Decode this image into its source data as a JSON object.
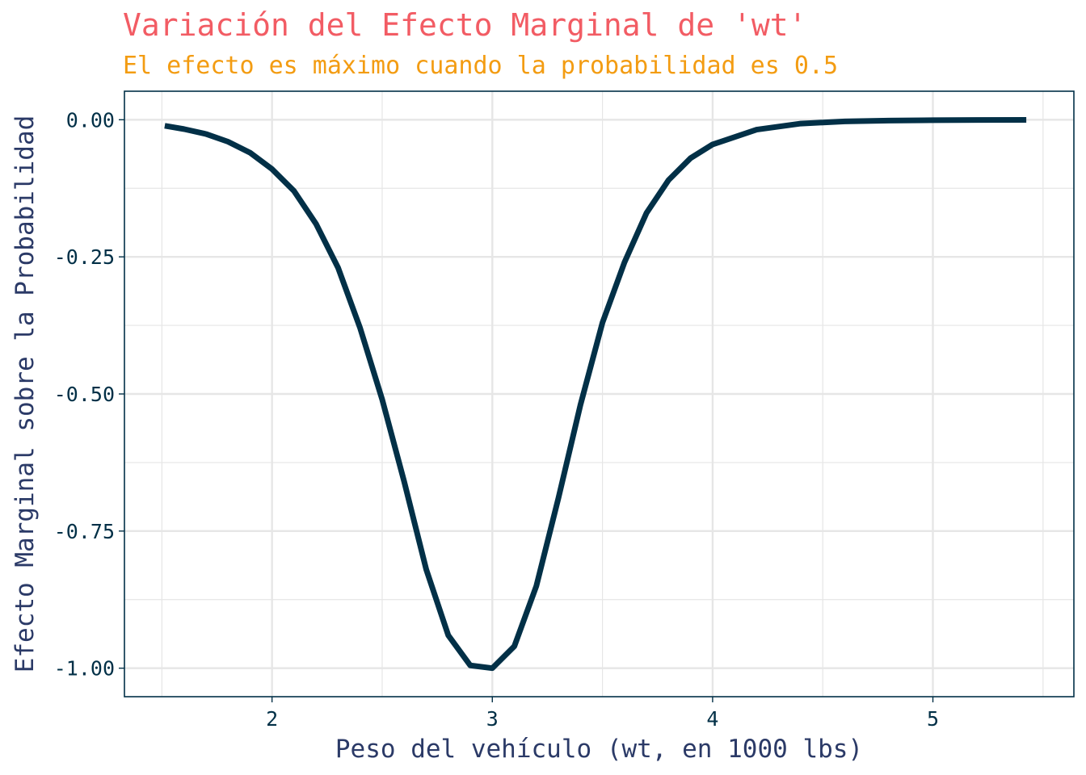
{
  "chart_data": {
    "type": "line",
    "title": "Variación del Efecto Marginal de 'wt'",
    "subtitle": "El efecto es máximo cuando la probabilidad es 0.5",
    "xlabel": "Peso del vehículo (wt, en 1000 lbs)",
    "ylabel": "Efecto Marginal sobre la Probabilidad",
    "xlim": [
      1.33,
      5.64
    ],
    "ylim": [
      -1.052,
      0.052
    ],
    "x_ticks": [
      2,
      3,
      4,
      5
    ],
    "x_tick_labels": [
      "2",
      "3",
      "4",
      "5"
    ],
    "x_minor_ticks": [
      1.5,
      2.5,
      3.5,
      4.5,
      5.5
    ],
    "y_ticks": [
      0,
      -0.25,
      -0.5,
      -0.75,
      -1
    ],
    "y_tick_labels": [
      "0.00",
      "-0.25",
      "-0.50",
      "-0.75",
      "-1.00"
    ],
    "y_minor_ticks": [
      -0.125,
      -0.375,
      -0.625,
      -0.875
    ],
    "grid": true,
    "legend": "none",
    "series": [
      {
        "x": [
          1.513,
          1.6,
          1.7,
          1.8,
          1.9,
          2.0,
          2.1,
          2.2,
          2.3,
          2.4,
          2.5,
          2.6,
          2.7,
          2.8,
          2.9,
          3.0,
          3.1,
          3.2,
          3.3,
          3.4,
          3.5,
          3.6,
          3.7,
          3.8,
          3.9,
          4.0,
          4.2,
          4.4,
          4.6,
          4.8,
          5.0,
          5.2,
          5.424
        ],
        "y": [
          -0.011,
          -0.017,
          -0.026,
          -0.04,
          -0.06,
          -0.09,
          -0.13,
          -0.19,
          -0.27,
          -0.38,
          -0.51,
          -0.66,
          -0.82,
          -0.94,
          -0.995,
          -1.0,
          -0.96,
          -0.85,
          -0.69,
          -0.52,
          -0.37,
          -0.26,
          -0.17,
          -0.11,
          -0.07,
          -0.045,
          -0.018,
          -0.007,
          -0.003,
          -0.0015,
          -0.0008,
          -0.0004,
          -0.0002
        ]
      }
    ],
    "colors": {
      "title": "#F25C64",
      "subtitle": "#F39C12",
      "line": "#023047",
      "axis_text": "#023047",
      "axis_title": "#2B3A67",
      "grid": "#E6E6E6",
      "panel_border": "#023047"
    }
  }
}
